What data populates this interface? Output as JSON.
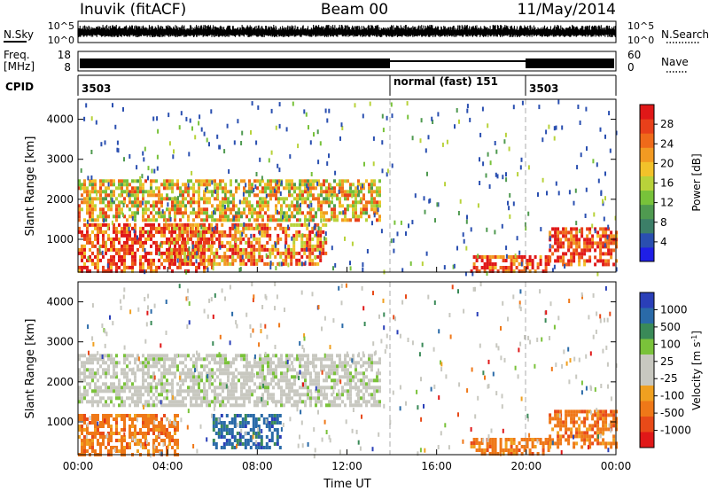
{
  "header": {
    "station": "Inuvik (fitACF)",
    "beam": "Beam 00",
    "date": "11/May/2014"
  },
  "strips": {
    "nsky_label": "N.Sky",
    "nsky_ticks": [
      "10^5",
      "10^0"
    ],
    "nsearch_label": "N.Search",
    "nsearch_ticks": [
      "10^5",
      "10^0"
    ],
    "freq_label": "Freq.",
    "freq_unit": "[MHz]",
    "freq_ticks": [
      "18",
      "8"
    ],
    "nave_label": "Nave",
    "nave_ticks": [
      "60",
      "0"
    ],
    "cpid_label": "CPID",
    "cpid_segments": [
      {
        "label": "3503",
        "start_hour": 0,
        "end_hour": 14.0
      },
      {
        "label": "normal (fast) 151",
        "start_hour": 14.0,
        "end_hour": 20.25
      },
      {
        "label": "3503",
        "start_hour": 20.25,
        "end_hour": 24
      }
    ]
  },
  "chart_data": [
    {
      "type": "heatmap",
      "panel": "power",
      "ylabel": "Slant Range [km]",
      "yticks": [
        1000,
        2000,
        3000,
        4000
      ],
      "ylim": [
        180,
        4500
      ],
      "xlim": [
        0,
        24
      ],
      "colorbar": {
        "label": "Power [dB]",
        "ticks": [
          "4",
          "8",
          "12",
          "16",
          "20",
          "24",
          "28"
        ],
        "range": [
          0,
          32
        ],
        "colors": [
          "#1f1fe6",
          "#2a4fb0",
          "#3c7f68",
          "#4f9a50",
          "#78c23a",
          "#b8d23a",
          "#f2c22a",
          "#f29a22",
          "#ef6a1a",
          "#e8401a",
          "#e01818"
        ]
      },
      "features": [
        {
          "name": "dayside-near",
          "x": [
            0,
            6
          ],
          "y": [
            200,
            1400
          ],
          "level": 0.85
        },
        {
          "name": "band-2000",
          "x": [
            0,
            13.5
          ],
          "y": [
            1500,
            2500
          ],
          "level": 0.6
        },
        {
          "name": "afternoon-near",
          "x": [
            4,
            11
          ],
          "y": [
            400,
            1400
          ],
          "level": 0.75
        },
        {
          "name": "evening-near",
          "x": [
            17.5,
            21
          ],
          "y": [
            200,
            600
          ],
          "level": 0.85
        },
        {
          "name": "late-band",
          "x": [
            21,
            24
          ],
          "y": [
            400,
            1300
          ],
          "level": 0.9
        }
      ]
    },
    {
      "type": "heatmap",
      "panel": "velocity",
      "ylabel": "Slant Range [km]",
      "yticks": [
        1000,
        2000,
        3000,
        4000
      ],
      "ylim": [
        180,
        4500
      ],
      "xlim": [
        0,
        24
      ],
      "xticks": [
        "00:00",
        "04:00",
        "08:00",
        "12:00",
        "16:00",
        "20:00",
        "00:00"
      ],
      "xlabel": "Time UT",
      "colorbar": {
        "label": "Velocity [m s^-1]",
        "ticks": [
          "1000",
          "500",
          "100",
          "25",
          "-25",
          "-100",
          "-500",
          "-1000"
        ],
        "colors": [
          "#2a3fb8",
          "#2a6aa8",
          "#3a8a58",
          "#7ac23a",
          "#c8c8c0",
          "#c8c8c0",
          "#f0a020",
          "#ef7818",
          "#e84a18",
          "#e01818"
        ]
      },
      "features": [
        {
          "name": "gray-band",
          "x": [
            0,
            13.5
          ],
          "y": [
            1400,
            2700
          ],
          "velocity": 0
        },
        {
          "name": "near-orange",
          "x": [
            0,
            4.5
          ],
          "y": [
            200,
            1200
          ],
          "velocity": -300
        },
        {
          "name": "near-blue",
          "x": [
            6,
            9
          ],
          "y": [
            400,
            1200
          ],
          "velocity": 500
        },
        {
          "name": "evening-near",
          "x": [
            17.5,
            21
          ],
          "y": [
            200,
            600
          ],
          "velocity": -200
        },
        {
          "name": "late-band",
          "x": [
            21,
            24
          ],
          "y": [
            400,
            1300
          ],
          "velocity": -300
        }
      ]
    }
  ]
}
